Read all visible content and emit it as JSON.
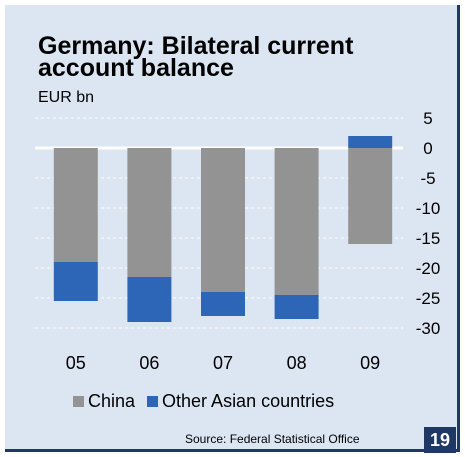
{
  "page_number": "19",
  "source": "Source: Federal Statistical Office",
  "colors": {
    "background": "#dce6f2",
    "china": "#939393",
    "other_asian": "#2e66b7",
    "accent": "#1f3864"
  },
  "chart_data": {
    "type": "bar",
    "stacked": true,
    "title": "Germany: Bilateral current account balance",
    "unit": "EUR bn",
    "categories": [
      "05",
      "06",
      "07",
      "08",
      "09"
    ],
    "series": [
      {
        "name": "China",
        "values": [
          -19,
          -21.5,
          -24,
          -24.5,
          -16
        ]
      },
      {
        "name": "Other Asian countries",
        "values": [
          -6.5,
          -7.5,
          -4,
          -4,
          2
        ]
      }
    ],
    "ylim": [
      -30,
      5
    ],
    "yticks": [
      5,
      0,
      -5,
      -10,
      -15,
      -20,
      -25,
      -30
    ],
    "y_axis_position": "right",
    "grid": true,
    "legend_position": "bottom"
  }
}
